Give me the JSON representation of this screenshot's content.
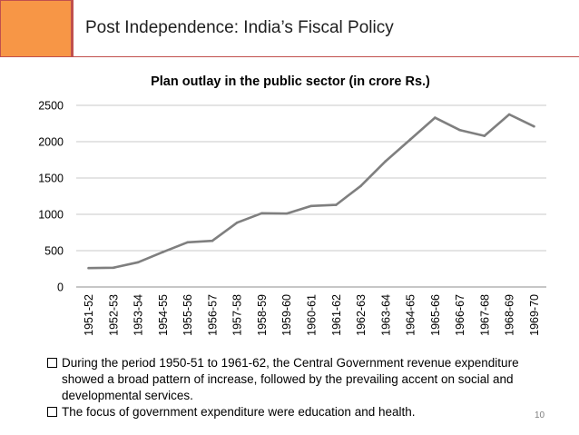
{
  "slide": {
    "title": "Post Independence: India’s Fiscal Policy",
    "page_number": "10"
  },
  "colors": {
    "accent_orange": "#f79646",
    "accent_red": "#c0504d",
    "line": "#7f7f7f",
    "grid": "#c9c9c9"
  },
  "chart_data": {
    "type": "line",
    "title": "Plan outlay in the public sector (in crore Rs.)",
    "xlabel": "",
    "ylabel": "",
    "ylim": [
      0,
      2500
    ],
    "yticks": [
      0,
      500,
      1000,
      1500,
      2000,
      2500
    ],
    "grid": true,
    "legend": "none",
    "categories": [
      "1951-52",
      "1952-53",
      "1953-54",
      "1954-55",
      "1955-56",
      "1956-57",
      "1957-58",
      "1958-59",
      "1959-60",
      "1960-61",
      "1961-62",
      "1962-63",
      "1963-64",
      "1964-65",
      "1965-66",
      "1966-67",
      "1967-68",
      "1968-69",
      "1969-70"
    ],
    "series": [
      {
        "name": "Plan outlay",
        "values": [
          260,
          265,
          340,
          480,
          615,
          635,
          885,
          1015,
          1010,
          1115,
          1130,
          1390,
          1730,
          2030,
          2330,
          2160,
          2080,
          2375,
          2210
        ]
      }
    ]
  },
  "bullets": [
    "During the period 1950-51 to 1961-62, the Central Government  revenue expenditure showed a broad pattern of increase, followed by the prevailing accent on social and developmental services.",
    "The focus of government expenditure were education and health."
  ]
}
